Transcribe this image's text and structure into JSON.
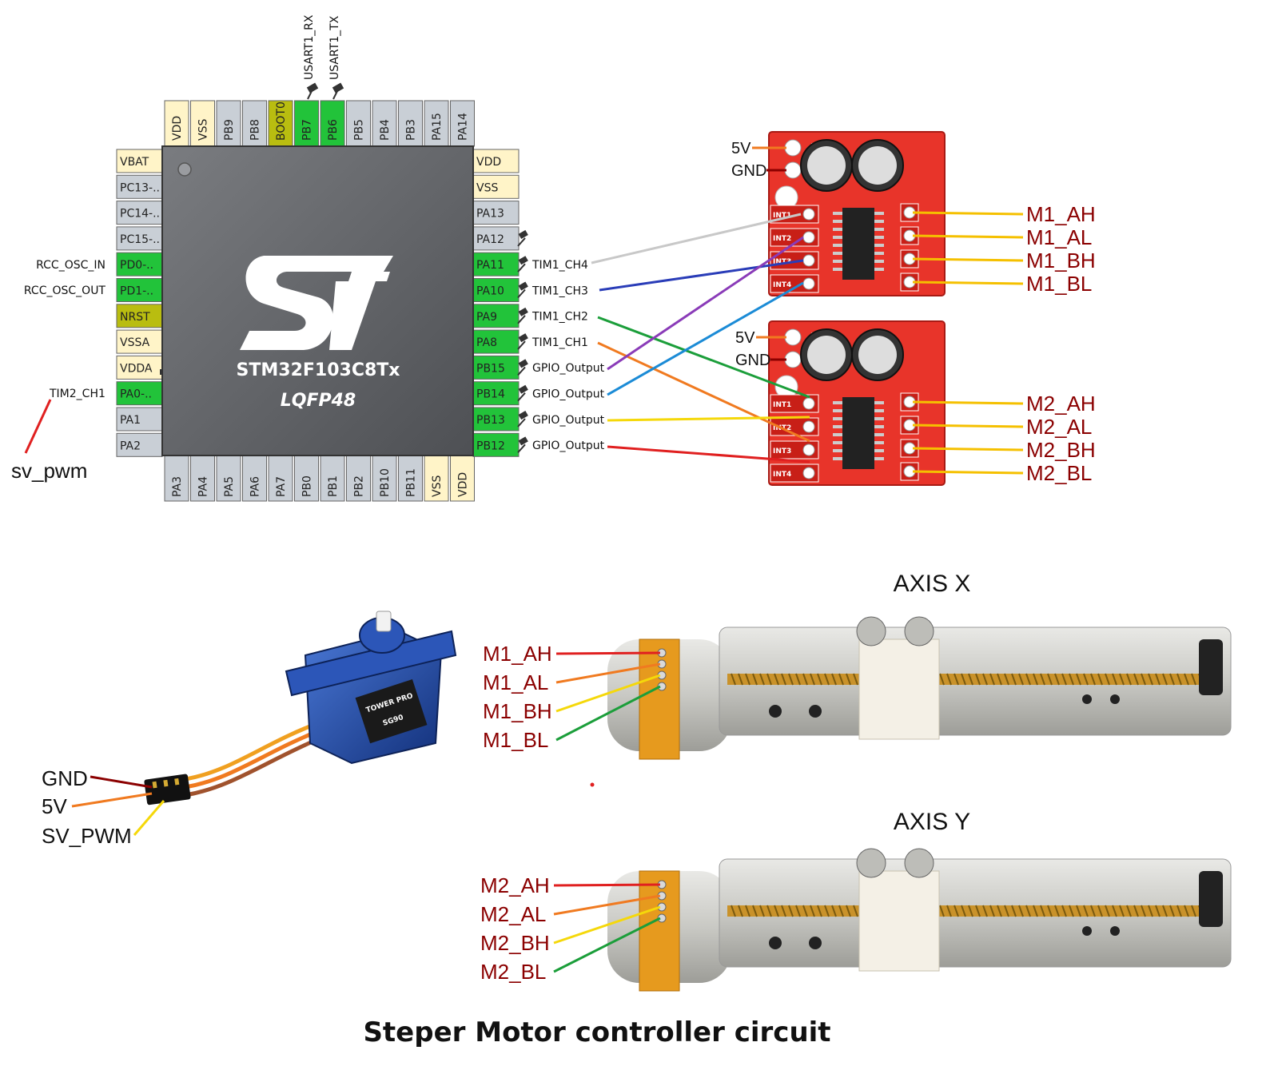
{
  "mcu": {
    "name": "STM32F103C8Tx",
    "package": "LQFP48",
    "top_pins": [
      "VDD",
      "VSS",
      "PB9",
      "PB8",
      "BOOT0",
      "PB7",
      "PB6",
      "PB5",
      "PB4",
      "PB3",
      "PA15",
      "PA14"
    ],
    "bottom_pins": [
      "PA3",
      "PA4",
      "PA5",
      "PA6",
      "PA7",
      "PB0",
      "PB1",
      "PB2",
      "PB10",
      "PB11",
      "VSS",
      "VDD"
    ],
    "left_pins": [
      "VBAT",
      "PC13-..",
      "PC14-..",
      "PC15-..",
      "PD0-..",
      "PD1-..",
      "NRST",
      "VSSA",
      "VDDA",
      "PA0-..",
      "PA1",
      "PA2"
    ],
    "right_pins": [
      "VDD",
      "VSS",
      "PA13",
      "PA12",
      "PA11",
      "PA10",
      "PA9",
      "PA8",
      "PB15",
      "PB14",
      "PB13",
      "PB12"
    ],
    "top_signals": [
      "USART1_RX",
      "USART1_TX"
    ],
    "left_signals": [
      "RCC_OSC_IN",
      "RCC_OSC_OUT",
      "TIM2_CH1"
    ],
    "right_signals": [
      "TIM1_CH4",
      "TIM1_CH3",
      "TIM1_CH2",
      "TIM1_CH1",
      "GPIO_Output",
      "GPIO_Output",
      "GPIO_Output",
      "GPIO_Output"
    ]
  },
  "servo_pwm_label": "sv_pwm",
  "driver1": {
    "power": [
      "5V",
      "GND"
    ],
    "inputs": [
      "INT1",
      "INT2",
      "INT3",
      "INT4"
    ],
    "outputs": [
      "M1_AH",
      "M1_AL",
      "M1_BH",
      "M1_BL"
    ]
  },
  "driver2": {
    "power": [
      "5V",
      "GND"
    ],
    "inputs": [
      "INT1",
      "INT2",
      "INT3",
      "INT4"
    ],
    "outputs": [
      "M2_AH",
      "M2_AL",
      "M2_BH",
      "M2_BL"
    ]
  },
  "servo": {
    "wires": [
      "GND",
      "5V",
      "SV_PWM"
    ],
    "brand": "TOWER PRO",
    "model": "SG90"
  },
  "axis_x": {
    "title": "AXIS X",
    "wires": [
      "M1_AH",
      "M1_AL",
      "M1_BH",
      "M1_BL"
    ]
  },
  "axis_y": {
    "title": "AXIS Y",
    "wires": [
      "M2_AH",
      "M2_AL",
      "M2_BH",
      "M2_BL"
    ]
  },
  "title": "Steper Motor controller circuit",
  "colors": {
    "pin_green": "#22c33a",
    "pin_yellow": "#fff4c8",
    "pin_gray": "#c9cfd6",
    "pin_olive": "#b9bd10",
    "driver_red": "#e8342a",
    "label_red": "#8b0000",
    "wire_gray": "#c8c8c8",
    "wire_blue": "#2a3db8",
    "wire_green": "#1b9e3a",
    "wire_orange": "#f07a20",
    "wire_purple": "#8a3bb8",
    "wire_lightblue": "#1b8bd6",
    "wire_yellow": "#f5d80a",
    "wire_red": "#e02020"
  }
}
